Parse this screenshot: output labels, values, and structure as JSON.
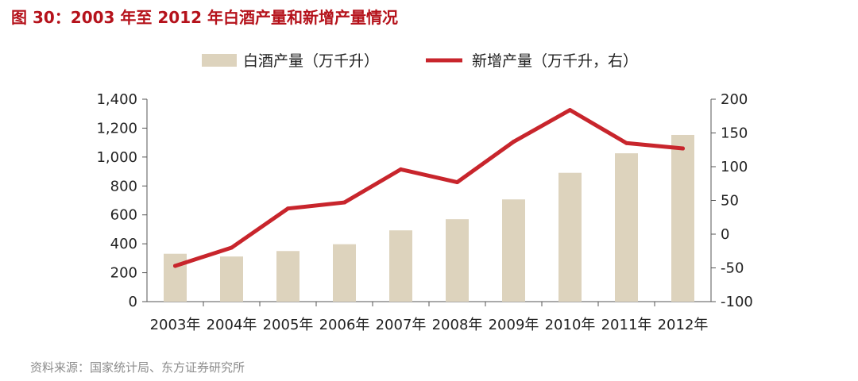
{
  "title": "图 30：2003 年至 2012 年白酒产量和新增产量情况",
  "source": "资料来源：国家统计局、东方证券研究所",
  "chart_data": {
    "type": "bar",
    "categories": [
      "2003年",
      "2004年",
      "2005年",
      "2006年",
      "2007年",
      "2008年",
      "2009年",
      "2010年",
      "2011年",
      "2012年"
    ],
    "series": [
      {
        "name": "白酒产量（万千升）",
        "type": "bar",
        "axis": "left",
        "color": "#ddd3bd",
        "values": [
          331,
          312,
          350,
          397,
          493,
          570,
          707,
          891,
          1026,
          1153
        ]
      },
      {
        "name": "新增产量（万千升，右）",
        "type": "line",
        "axis": "right",
        "color": "#c8252c",
        "values": [
          -47,
          -20,
          38,
          47,
          96,
          77,
          137,
          184,
          135,
          127
        ]
      }
    ],
    "y_left": {
      "lim": [
        0,
        1400
      ],
      "ticks": [
        "0",
        "200",
        "400",
        "600",
        "800",
        "1,000",
        "1,200",
        "1,400"
      ]
    },
    "y_right": {
      "lim": [
        -100,
        200
      ],
      "ticks": [
        "-100",
        "-50",
        "0",
        "50",
        "100",
        "150",
        "200"
      ]
    },
    "legend_position": "top",
    "grid": false
  }
}
